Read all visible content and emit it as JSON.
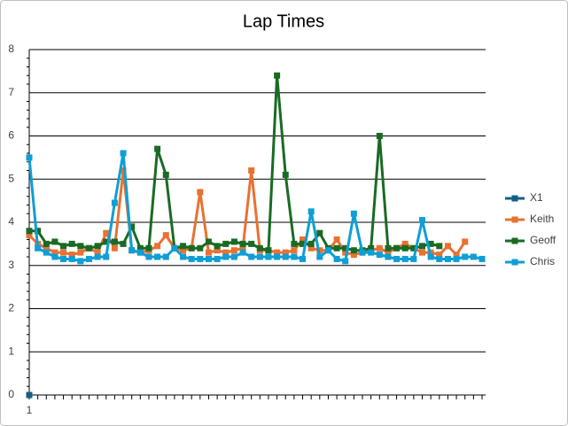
{
  "chart_data": {
    "type": "line",
    "title": "Lap Times",
    "categories": [
      "1",
      null,
      null,
      null,
      null,
      null,
      null,
      null,
      null,
      null,
      null,
      null,
      null,
      null,
      null,
      null,
      null,
      null,
      null,
      null,
      null,
      null,
      null,
      null,
      null,
      null,
      null,
      null,
      null,
      null,
      null,
      null,
      null,
      null,
      null,
      null,
      null,
      null,
      null,
      null,
      null,
      null,
      null,
      null,
      null,
      null,
      null,
      null,
      null,
      null,
      null,
      null,
      null,
      null
    ],
    "ylim": [
      0,
      8
    ],
    "yticks": [
      0,
      1,
      2,
      3,
      4,
      5,
      6,
      7,
      8
    ],
    "grid": true,
    "legend": "right",
    "series": [
      {
        "name": "X1",
        "color": "#156082",
        "values": [
          0,
          null,
          null,
          null,
          null,
          null,
          null,
          null,
          null,
          null,
          null,
          null,
          null,
          null,
          null,
          null,
          null,
          null,
          null,
          null,
          null,
          null,
          null,
          null,
          null,
          null,
          null,
          null,
          null,
          null,
          null,
          null,
          null,
          null,
          null,
          null,
          null,
          null,
          null,
          null,
          null,
          null,
          null,
          null,
          null,
          null,
          null,
          null,
          null,
          null,
          null,
          null,
          null,
          null
        ]
      },
      {
        "name": "Keith",
        "color": "#E97132",
        "values": [
          3.7,
          3.5,
          3.4,
          3.3,
          3.3,
          3.25,
          3.3,
          3.4,
          3.3,
          3.75,
          3.4,
          5.2,
          3.35,
          3.3,
          3.35,
          3.45,
          3.7,
          3.4,
          3.35,
          3.4,
          4.7,
          3.3,
          3.35,
          3.3,
          3.35,
          3.4,
          5.2,
          3.35,
          3.35,
          3.3,
          3.3,
          3.35,
          3.6,
          3.4,
          3.35,
          3.35,
          3.6,
          3.3,
          3.25,
          3.3,
          3.35,
          3.4,
          3.3,
          3.4,
          3.5,
          3.4,
          3.3,
          3.3,
          3.25,
          3.45,
          3.25,
          3.55,
          null,
          null
        ]
      },
      {
        "name": "Geoff",
        "color": "#196B24",
        "values": [
          3.8,
          3.8,
          3.5,
          3.55,
          3.45,
          3.5,
          3.45,
          3.4,
          3.45,
          3.55,
          3.55,
          3.5,
          3.9,
          3.4,
          3.4,
          5.7,
          5.1,
          3.4,
          3.45,
          3.4,
          3.4,
          3.55,
          3.45,
          3.5,
          3.55,
          3.5,
          3.5,
          3.4,
          3.35,
          7.4,
          5.1,
          3.5,
          3.5,
          3.5,
          3.75,
          3.4,
          3.4,
          3.4,
          3.35,
          3.35,
          3.4,
          6.0,
          3.4,
          3.4,
          3.4,
          3.4,
          3.45,
          3.5,
          3.45,
          null,
          null,
          null,
          null,
          null
        ]
      },
      {
        "name": "Chris",
        "color": "#0F9ED5",
        "values": [
          5.5,
          3.4,
          3.3,
          3.2,
          3.15,
          3.15,
          3.1,
          3.15,
          3.2,
          3.2,
          4.45,
          5.6,
          3.35,
          3.3,
          3.2,
          3.2,
          3.2,
          3.4,
          3.2,
          3.15,
          3.15,
          3.15,
          3.15,
          3.2,
          3.2,
          3.3,
          3.2,
          3.2,
          3.2,
          3.2,
          3.2,
          3.2,
          3.15,
          4.25,
          3.2,
          3.35,
          3.15,
          3.1,
          4.2,
          3.3,
          3.3,
          3.25,
          3.2,
          3.15,
          3.15,
          3.15,
          4.05,
          3.2,
          3.15,
          3.15,
          3.15,
          3.2,
          3.2,
          3.15
        ]
      }
    ]
  }
}
